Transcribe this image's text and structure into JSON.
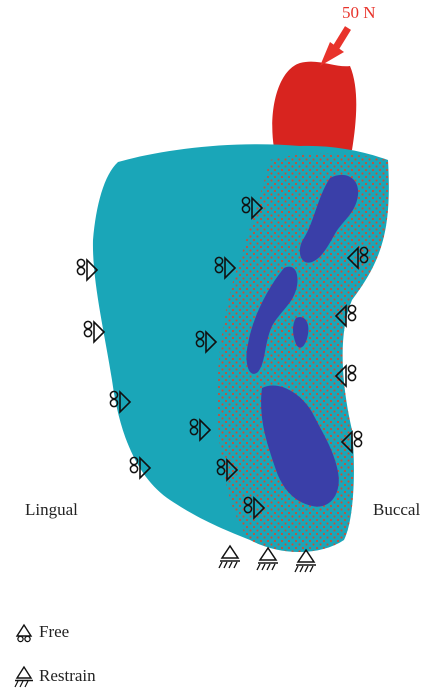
{
  "force": {
    "label": "50 N",
    "color": "#e8332b"
  },
  "sides": {
    "lingual": "Lingual",
    "buccal": "Buccal"
  },
  "legend": {
    "free": "Free",
    "restrain": "Restrain"
  },
  "colors": {
    "bone": "#1aa6b8",
    "tooth": "#d8241f",
    "dense_region": "#3a3fa8",
    "nodes": "#d9462b",
    "symbol": "#111111"
  },
  "icons": {
    "free_support": "roller-support-icon",
    "restrained_support": "fixed-support-icon",
    "force": "force-arrow-icon"
  }
}
